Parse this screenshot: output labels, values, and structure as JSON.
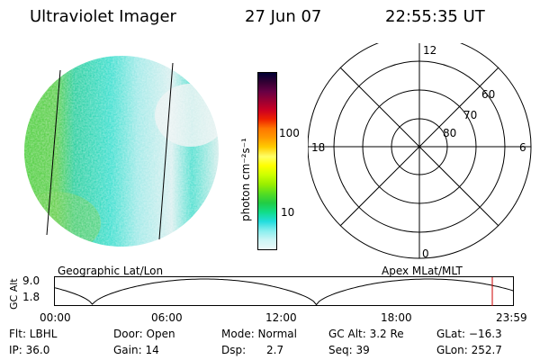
{
  "header": {
    "title": "Ultraviolet Imager",
    "date": "27 Jun 07",
    "time": "22:55:35 UT"
  },
  "colorbar": {
    "unit_label": "photon cm⁻²s⁻¹",
    "ticks": [
      "100",
      "10"
    ],
    "colors": [
      "#000033",
      "#330033",
      "#660044",
      "#990033",
      "#cc0022",
      "#ee2200",
      "#ff7700",
      "#ff9900",
      "#ffcc00",
      "#ffff66",
      "#ffff00",
      "#ccff00",
      "#99ee00",
      "#55dd22",
      "#22cc44",
      "#11dd88",
      "#22dddd",
      "#88eeee",
      "#ccf5f5",
      "#eaf8f8"
    ]
  },
  "polar_plot": {
    "labels_mlt": {
      "top": "12",
      "right": "6",
      "bottom": "0",
      "left": "18"
    },
    "labels_lat": [
      "60",
      "70",
      "80"
    ]
  },
  "timeline": {
    "left_label": "Geographic Lat/Lon",
    "right_label": "Apex MLat/MLT",
    "y_axis_title": "GC Alt",
    "y_ticks": [
      "9.0",
      "1.8"
    ],
    "x_ticks": [
      "00:00",
      "06:00",
      "12:00",
      "18:00",
      "23:59"
    ],
    "marker_color": "#cc0000",
    "marker_time_fraction": 0.955
  },
  "info": {
    "flt": "Flt: LBHL",
    "ip": "IP: 36.0",
    "door": "Door: Open",
    "gain": "Gain: 14",
    "mode": "Mode: Normal",
    "dsp": "Dsp:      2.7",
    "gcalt": "GC Alt: 3.2 Re",
    "seq": "Seq: 39",
    "glat": "GLat: −16.3",
    "glon": "GLon: 252.7"
  }
}
